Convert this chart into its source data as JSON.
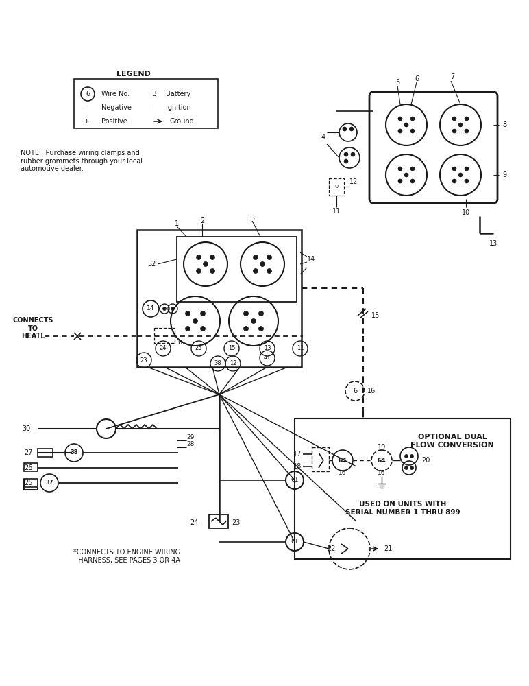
{
  "bg_color": "#ffffff",
  "lc": "#1a1a1a",
  "note_text": "NOTE:  Purchase wiring clamps and\nrubber grommets through your local\nautomotive dealer.",
  "connects_text": "CONNECTS\nTO\nHEATL",
  "footer_text": "*CONNECTS TO ENGINE WIRING\n  HARNESS, SEE PAGES 3 OR 4A",
  "optional_title": "OPTIONAL DUAL\nFLOW CONVERSION",
  "used_text": "USED ON UNITS WITH\nSERIAL NUMBER 1 THRU 899"
}
